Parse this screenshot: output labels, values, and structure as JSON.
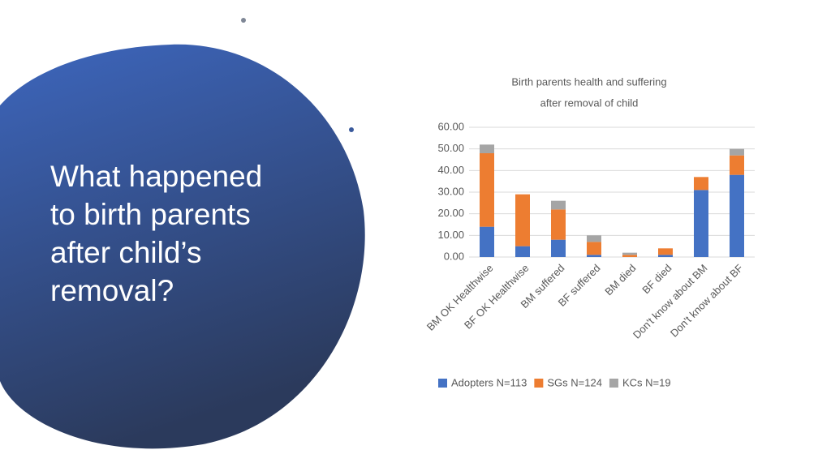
{
  "slide": {
    "title_lines": [
      "What happened",
      "to birth parents",
      "after child’s",
      "removal?"
    ]
  },
  "chart_data": {
    "type": "stacked-bar",
    "title": [
      "Birth parents health and suffering",
      "after removal of child"
    ],
    "categories": [
      "BM OK Healthwise",
      "BF OK Healthwise",
      "BM suffered",
      "BF suffered",
      "BM died",
      "BF died",
      "Don't know about BM",
      "Don't know about BF"
    ],
    "series": [
      {
        "name": "Adopters N=113",
        "color": "#4472c4",
        "values": [
          14,
          5,
          8,
          1,
          0,
          1,
          31,
          38
        ]
      },
      {
        "name": "SGs N=124",
        "color": "#ed7d31",
        "values": [
          34,
          24,
          14,
          6,
          1,
          3,
          6,
          9
        ]
      },
      {
        "name": "KCs N=19",
        "color": "#a5a5a5",
        "values": [
          4,
          0,
          4,
          3,
          1,
          0,
          0,
          3
        ]
      }
    ],
    "ylim": [
      0,
      60
    ],
    "yticks": [
      {
        "value": 0,
        "label": "0.00"
      },
      {
        "value": 10,
        "label": "10.00"
      },
      {
        "value": 20,
        "label": "20.00"
      },
      {
        "value": 30,
        "label": "30.00"
      },
      {
        "value": 40,
        "label": "40.00"
      },
      {
        "value": 50,
        "label": "50.00"
      },
      {
        "value": 60,
        "label": "60.00"
      }
    ],
    "grid": true,
    "legend": "bottom"
  }
}
